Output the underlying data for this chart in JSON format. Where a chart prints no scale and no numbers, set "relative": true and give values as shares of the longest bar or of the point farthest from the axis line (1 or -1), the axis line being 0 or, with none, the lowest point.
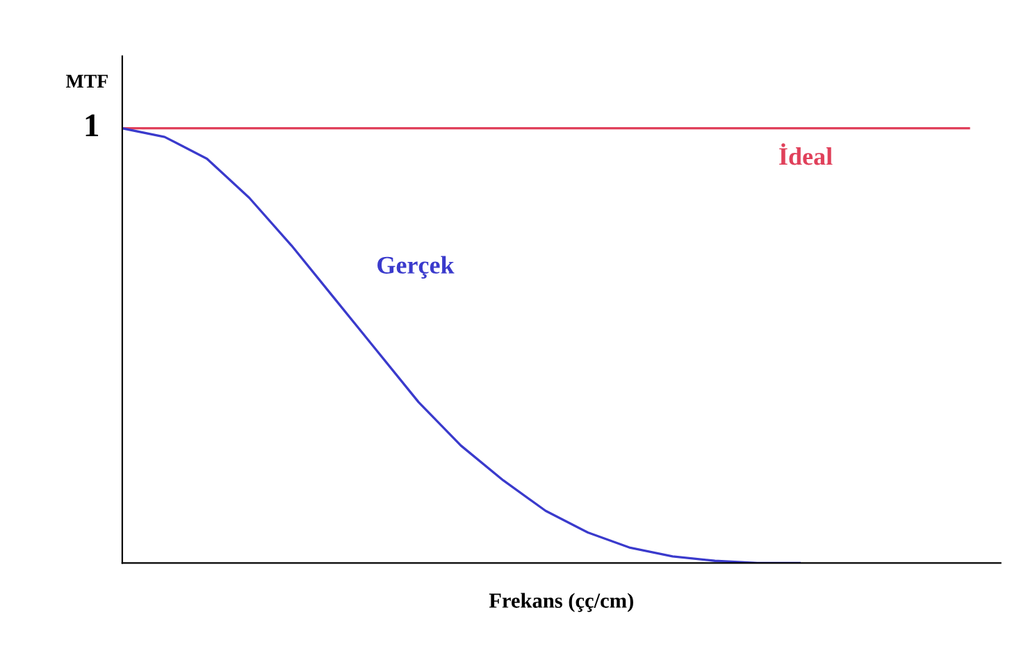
{
  "chart_data": {
    "type": "line",
    "relative": true,
    "ylabel": "MTF",
    "xlabel": "Frekans (çç/cm)",
    "categories": [
      null,
      null,
      null,
      null,
      null,
      null,
      null,
      null,
      null,
      null,
      null,
      null,
      null,
      null,
      null,
      null,
      null,
      null,
      null,
      null,
      null
    ],
    "series": [
      {
        "name": "İdeal",
        "color": "#e0405a",
        "values": [
          1,
          1,
          1,
          1,
          1,
          1,
          1,
          1,
          1,
          1,
          1,
          1,
          1,
          1,
          1,
          1,
          1,
          1,
          1,
          1,
          1
        ]
      },
      {
        "name": "Gerçek",
        "color": "#3a3acc",
        "values": [
          1,
          0.98,
          0.93,
          0.84,
          0.73,
          0.61,
          0.49,
          0.37,
          0.27,
          0.19,
          0.12,
          0.07,
          0.035,
          0.015,
          0.005,
          0,
          0,
          null,
          null,
          null,
          null
        ]
      }
    ],
    "annotations": [
      "1"
    ],
    "grid": false,
    "legend": false,
    "marker": "none",
    "line_style": "solid"
  }
}
